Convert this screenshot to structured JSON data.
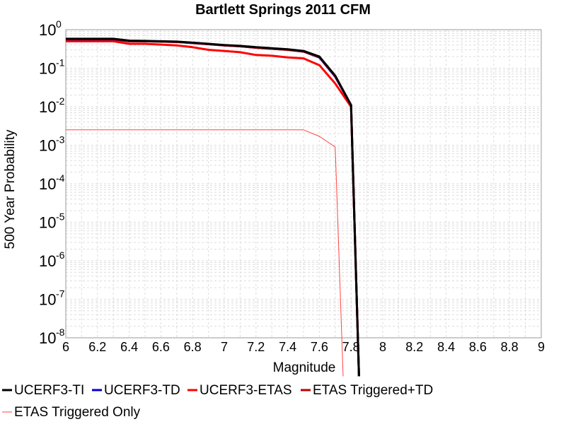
{
  "chart_data": {
    "type": "line",
    "title": "Bartlett Springs 2011 CFM",
    "xlabel": "Magnitude",
    "ylabel": "500 Year Probability",
    "xlim": [
      6,
      9
    ],
    "ylim": [
      1e-08,
      1
    ],
    "y_scale": "log",
    "grid": true,
    "legend_placement": "bottom",
    "x_ticks": [
      "6",
      "6.2",
      "6.4",
      "6.6",
      "6.8",
      "7",
      "7.2",
      "7.4",
      "7.6",
      "7.8",
      "8",
      "8.2",
      "8.4",
      "8.6",
      "8.8",
      "9"
    ],
    "y_ticks": [
      {
        "base": "10",
        "exp": "0"
      },
      {
        "base": "10",
        "exp": "-1"
      },
      {
        "base": "10",
        "exp": "-2"
      },
      {
        "base": "10",
        "exp": "-3"
      },
      {
        "base": "10",
        "exp": "-4"
      },
      {
        "base": "10",
        "exp": "-5"
      },
      {
        "base": "10",
        "exp": "-6"
      },
      {
        "base": "10",
        "exp": "-7"
      },
      {
        "base": "10",
        "exp": "-8"
      }
    ],
    "series": [
      {
        "name": "UCERF3-TI",
        "color": "#000000",
        "width": 3,
        "x": [
          6.0,
          6.1,
          6.2,
          6.3,
          6.4,
          6.5,
          6.6,
          6.7,
          6.8,
          6.9,
          7.0,
          7.1,
          7.2,
          7.3,
          7.4,
          7.5,
          7.6,
          7.7,
          7.8,
          7.85
        ],
        "y": [
          0.58,
          0.58,
          0.58,
          0.58,
          0.52,
          0.51,
          0.5,
          0.49,
          0.46,
          0.43,
          0.4,
          0.38,
          0.35,
          0.33,
          0.31,
          0.28,
          0.2,
          0.064,
          0.011,
          1e-09
        ]
      },
      {
        "name": "UCERF3-TD",
        "color": "#0000cc",
        "width": 3,
        "x": [
          6.0,
          6.1,
          6.2,
          6.3,
          6.4,
          6.5,
          6.6,
          6.7,
          6.8,
          6.9,
          7.0,
          7.1,
          7.2,
          7.3,
          7.4,
          7.5,
          7.6,
          7.7,
          7.8,
          7.85
        ],
        "y": [
          0.56,
          0.56,
          0.56,
          0.56,
          0.5,
          0.5,
          0.49,
          0.48,
          0.45,
          0.42,
          0.39,
          0.37,
          0.34,
          0.32,
          0.3,
          0.27,
          0.19,
          0.06,
          0.011,
          1e-09
        ]
      },
      {
        "name": "UCERF3-ETAS",
        "color": "#ff0000",
        "width": 3,
        "x": [
          6.0,
          6.1,
          6.2,
          6.3,
          6.4,
          6.5,
          6.6,
          6.7,
          6.8,
          6.9,
          7.0,
          7.1,
          7.2,
          7.3,
          7.4,
          7.5,
          7.6,
          7.7,
          7.8,
          7.85
        ],
        "y": [
          0.5,
          0.5,
          0.5,
          0.5,
          0.43,
          0.43,
          0.41,
          0.39,
          0.35,
          0.3,
          0.28,
          0.26,
          0.22,
          0.21,
          0.19,
          0.18,
          0.12,
          0.04,
          0.01,
          1e-09
        ]
      },
      {
        "name": "ETAS Triggered+TD",
        "color": "#bb0000",
        "width": 3,
        "x": [
          6.0,
          6.1,
          6.2,
          6.3,
          6.4,
          6.5,
          6.6,
          6.7,
          6.8,
          6.9,
          7.0,
          7.1,
          7.2,
          7.3,
          7.4,
          7.5,
          7.6,
          7.7,
          7.8,
          7.85
        ],
        "y": [
          0.565,
          0.565,
          0.565,
          0.565,
          0.505,
          0.5,
          0.49,
          0.48,
          0.45,
          0.42,
          0.39,
          0.37,
          0.34,
          0.32,
          0.3,
          0.27,
          0.195,
          0.062,
          0.011,
          1e-09
        ]
      },
      {
        "name": "ETAS Triggered Only",
        "color": "#ff4444",
        "width": 1,
        "x": [
          6.0,
          6.2,
          6.4,
          6.6,
          6.8,
          7.0,
          7.2,
          7.4,
          7.5,
          7.6,
          7.7,
          7.75
        ],
        "y": [
          0.0025,
          0.0025,
          0.0025,
          0.0025,
          0.0025,
          0.0025,
          0.0025,
          0.0025,
          0.0025,
          0.0017,
          0.0009,
          1e-09
        ]
      }
    ]
  }
}
